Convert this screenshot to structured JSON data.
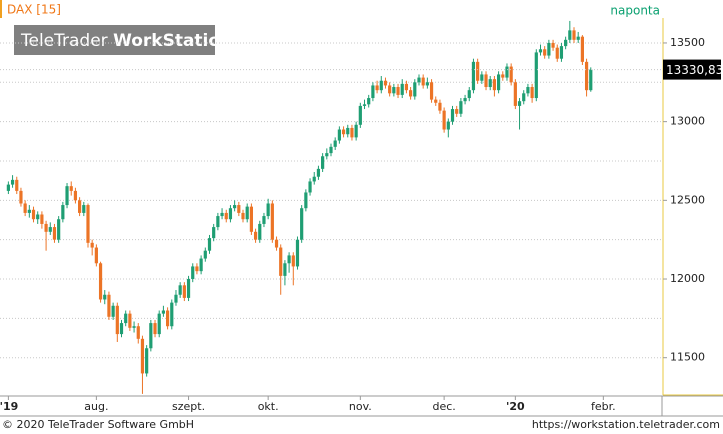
{
  "chart_data": {
    "type": "candlestick",
    "title": "DAX [15]",
    "subtitle": "naponta",
    "watermark": [
      "TeleTrader",
      "WorkStation"
    ],
    "up_color": "#1f9e73",
    "down_color": "#ec7426",
    "xlim": [
      -2,
      156
    ],
    "ylim": [
      11263,
      13773
    ],
    "yticks": [
      11500,
      12000,
      12500,
      13000,
      13500
    ],
    "minor_yticks": [
      11750,
      12250,
      12750,
      13250
    ],
    "xticks": [
      {
        "value": 0,
        "label": "'19"
      },
      {
        "value": 21,
        "label": "aug."
      },
      {
        "value": 43,
        "label": "szept."
      },
      {
        "value": 62,
        "label": "okt."
      },
      {
        "value": 84,
        "label": "nov."
      },
      {
        "value": 104,
        "label": "dec."
      },
      {
        "value": 121,
        "label": "'20"
      },
      {
        "value": 142,
        "label": "febr."
      }
    ],
    "last_close_label": "13330,83",
    "open": [
      12560,
      12600,
      12630,
      12560,
      12480,
      12420,
      12440,
      12380,
      12410,
      12350,
      12300,
      12330,
      12250,
      12380,
      12470,
      12590,
      12560,
      12500,
      12420,
      12470,
      12230,
      12200,
      12100,
      11870,
      11900,
      11760,
      11830,
      11650,
      11720,
      11780,
      11690,
      11700,
      11620,
      11400,
      11560,
      11720,
      11650,
      11780,
      11800,
      11700,
      11850,
      11900,
      11960,
      11880,
      12000,
      12080,
      12050,
      12130,
      12180,
      12260,
      12330,
      12400,
      12420,
      12380,
      12450,
      12470,
      12420,
      12380,
      12460,
      12300,
      12250,
      12350,
      12400,
      12480,
      12250,
      12200,
      12020,
      12100,
      12150,
      12080,
      12250,
      12450,
      12550,
      12620,
      12650,
      12700,
      12780,
      12800,
      12840,
      12880,
      12950,
      12920,
      12960,
      12900,
      12980,
      13100,
      13110,
      13150,
      13230,
      13200,
      13260,
      13230,
      13180,
      13220,
      13170,
      13240,
      13200,
      13160,
      13250,
      13280,
      13230,
      13250,
      13140,
      13120,
      13070,
      12950,
      13000,
      13080,
      13050,
      13130,
      13150,
      13200,
      13380,
      13260,
      13300,
      13220,
      13270,
      13200,
      13300,
      13280,
      13350,
      13250,
      13100,
      13130,
      13180,
      13220,
      13150,
      13440,
      13460,
      13420,
      13500,
      13470,
      13400,
      13480,
      13520,
      13580,
      13520,
      13540,
      13380,
      13200
    ],
    "high": [
      12620,
      12660,
      12650,
      12580,
      12500,
      12470,
      12460,
      12430,
      12430,
      12370,
      12360,
      12350,
      12400,
      12490,
      12610,
      12620,
      12580,
      12520,
      12490,
      12480,
      12250,
      12220,
      12110,
      11930,
      11920,
      11850,
      11850,
      11740,
      11800,
      11800,
      11730,
      11720,
      11640,
      11580,
      11740,
      11740,
      11800,
      11830,
      11820,
      11870,
      11930,
      11980,
      11980,
      12020,
      12100,
      12100,
      12150,
      12200,
      12280,
      12350,
      12420,
      12450,
      12440,
      12470,
      12500,
      12490,
      12440,
      12480,
      12480,
      12320,
      12370,
      12420,
      12510,
      12500,
      12270,
      12220,
      12120,
      12170,
      12170,
      12270,
      12470,
      12570,
      12640,
      12680,
      12720,
      12800,
      12830,
      12860,
      12900,
      12970,
      12970,
      12980,
      12980,
      13000,
      13120,
      13140,
      13170,
      13250,
      13260,
      13290,
      13280,
      13250,
      13240,
      13240,
      13270,
      13260,
      13220,
      13270,
      13300,
      13300,
      13280,
      13270,
      13160,
      13140,
      13090,
      13020,
      13100,
      13100,
      13150,
      13170,
      13220,
      13400,
      13400,
      13320,
      13320,
      13290,
      13290,
      13320,
      13320,
      13370,
      13370,
      13270,
      13150,
      13200,
      13240,
      13240,
      13460,
      13490,
      13480,
      13520,
      13520,
      13490,
      13500,
      13540,
      13640,
      13600,
      13570,
      13550,
      13400,
      13345
    ],
    "low": [
      12540,
      12580,
      12540,
      12460,
      12400,
      12390,
      12360,
      12350,
      12320,
      12180,
      12280,
      12230,
      12230,
      12360,
      12450,
      12530,
      12480,
      12400,
      12400,
      12200,
      12150,
      12080,
      11850,
      11840,
      11740,
      11740,
      11600,
      11630,
      11700,
      11670,
      11660,
      11590,
      11270,
      11380,
      11540,
      11630,
      11630,
      11760,
      11680,
      11680,
      11830,
      11880,
      11860,
      11860,
      11980,
      12030,
      12030,
      12110,
      12160,
      12240,
      12310,
      12380,
      12360,
      12360,
      12430,
      12400,
      12360,
      12360,
      12280,
      12230,
      12230,
      12330,
      12380,
      12230,
      12180,
      11900,
      11960,
      12040,
      11960,
      12060,
      12230,
      12430,
      12530,
      12600,
      12630,
      12680,
      12760,
      12780,
      12820,
      12860,
      12900,
      12900,
      12880,
      12880,
      12960,
      13080,
      13090,
      13130,
      13180,
      13180,
      13210,
      13160,
      13160,
      13150,
      13150,
      13180,
      13140,
      13140,
      13230,
      13210,
      13210,
      13120,
      13100,
      13050,
      12930,
      12900,
      12980,
      13030,
      13030,
      13110,
      13130,
      13180,
      13240,
      13240,
      13200,
      13200,
      13160,
      13180,
      13260,
      13260,
      13230,
      13080,
      12950,
      13110,
      13160,
      13120,
      13130,
      13420,
      13400,
      13400,
      13450,
      13380,
      13380,
      13460,
      13500,
      13500,
      13500,
      13360,
      13160,
      13190
    ],
    "close": [
      12600,
      12630,
      12560,
      12480,
      12420,
      12440,
      12380,
      12410,
      12350,
      12300,
      12330,
      12250,
      12380,
      12470,
      12590,
      12560,
      12500,
      12420,
      12470,
      12230,
      12200,
      12100,
      11870,
      11900,
      11760,
      11830,
      11650,
      11720,
      11780,
      11690,
      11700,
      11620,
      11400,
      11560,
      11720,
      11650,
      11780,
      11800,
      11700,
      11850,
      11900,
      11960,
      11880,
      12000,
      12080,
      12050,
      12130,
      12180,
      12260,
      12330,
      12400,
      12420,
      12380,
      12450,
      12470,
      12420,
      12380,
      12460,
      12300,
      12250,
      12350,
      12400,
      12480,
      12250,
      12200,
      12020,
      12100,
      12150,
      12080,
      12250,
      12450,
      12550,
      12620,
      12650,
      12700,
      12780,
      12800,
      12840,
      12880,
      12950,
      12920,
      12960,
      12900,
      12980,
      13100,
      13110,
      13150,
      13230,
      13200,
      13260,
      13230,
      13180,
      13220,
      13170,
      13240,
      13200,
      13160,
      13250,
      13280,
      13230,
      13250,
      13140,
      13120,
      13070,
      12950,
      13000,
      13080,
      13050,
      13130,
      13150,
      13200,
      13380,
      13260,
      13300,
      13220,
      13270,
      13200,
      13300,
      13280,
      13350,
      13250,
      13100,
      13130,
      13180,
      13220,
      13150,
      13440,
      13460,
      13420,
      13500,
      13470,
      13400,
      13480,
      13520,
      13580,
      13520,
      13540,
      13380,
      13200,
      13330.83
    ]
  },
  "footer": {
    "left": "© 2020 TeleTrader Software GmbH",
    "right": "https://workstation.teletrader.com"
  }
}
